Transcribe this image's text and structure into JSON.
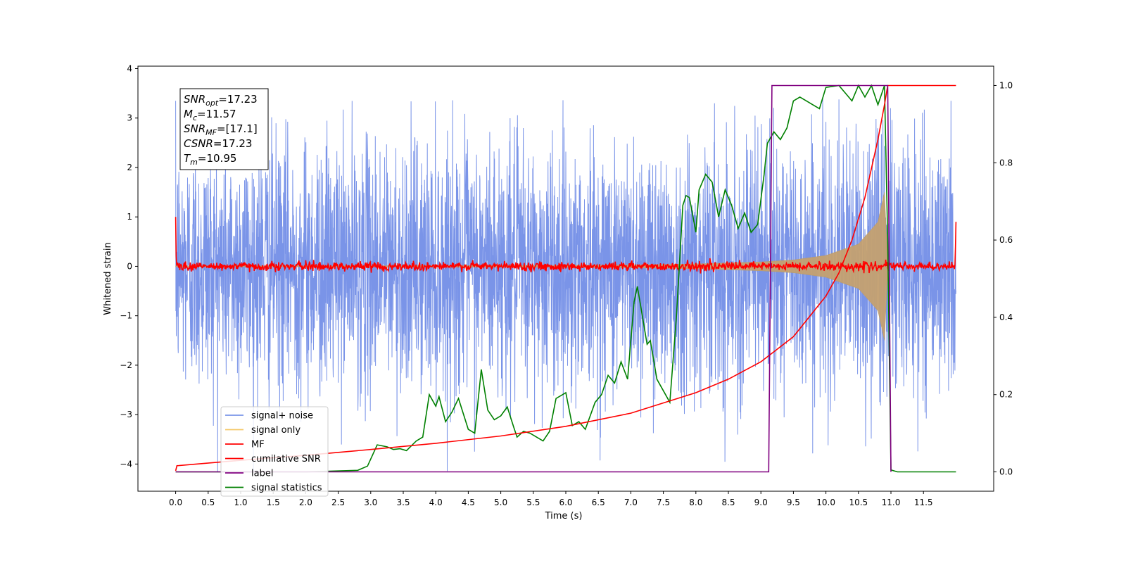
{
  "chart_data": {
    "type": "line",
    "xlabel": "Time (s)",
    "ylabel": "Whitened strain",
    "xlim": [
      -0.58,
      12.58
    ],
    "ylim": [
      -4.55,
      4.05
    ],
    "ylim_right": [
      -0.05,
      1.05
    ],
    "x_ticks": [
      "0.0",
      "0.5",
      "1.0",
      "1.5",
      "2.0",
      "2.5",
      "3.0",
      "3.5",
      "4.0",
      "4.5",
      "5.0",
      "5.5",
      "6.0",
      "6.5",
      "7.0",
      "7.5",
      "8.0",
      "8.5",
      "9.0",
      "9.5",
      "10.0",
      "10.5",
      "11.0",
      "11.5"
    ],
    "y_ticks": [
      "4",
      "3",
      "2",
      "1",
      "0",
      "−1",
      "−2",
      "−3",
      "−4"
    ],
    "y_ticks_right": [
      "1.0",
      "0.8",
      "0.6",
      "0.4",
      "0.2",
      "0.0"
    ],
    "grid": false,
    "legend_position": "lower-left",
    "annotation": {
      "lines": [
        {
          "name": "SNR",
          "sub": "opt",
          "value": "=17.23"
        },
        {
          "name": "M",
          "sub": "c",
          "value": "=11.57"
        },
        {
          "name": "SNR",
          "sub": "MF",
          "value": "=[17.1]"
        },
        {
          "name": "CSNR",
          "sub": "",
          "value": "=17.23"
        },
        {
          "name": "T",
          "sub": "m",
          "value": "=10.95"
        }
      ]
    },
    "series": [
      {
        "name": "signal+ noise",
        "color": "#7a94e8",
        "axis": "left",
        "description_range": [
          -4.15,
          3.35
        ],
        "x_range": [
          0.0,
          12.0
        ]
      },
      {
        "name": "signal only",
        "color": "#f5c868",
        "axis": "left",
        "envelope": {
          "t": [
            0.0,
            2.0,
            4.0,
            6.0,
            7.0,
            8.0,
            9.0,
            9.5,
            10.0,
            10.5,
            10.8,
            10.9,
            10.95
          ],
          "amp": [
            0.01,
            0.01,
            0.015,
            0.02,
            0.03,
            0.05,
            0.09,
            0.13,
            0.22,
            0.45,
            0.9,
            1.5,
            0.1
          ]
        }
      },
      {
        "name": "MF",
        "color": "#ff0000",
        "axis": "left",
        "baseline": 0.0,
        "x_range": [
          0.0,
          12.0
        ]
      },
      {
        "name": "cumilative SNR",
        "color": "#ff0000",
        "axis": "right",
        "x": [
          0.0,
          0.02,
          1.0,
          2.0,
          3.0,
          4.0,
          5.0,
          6.0,
          7.0,
          8.0,
          8.5,
          9.0,
          9.5,
          10.0,
          10.2,
          10.4,
          10.6,
          10.8,
          10.9,
          10.95,
          12.0
        ],
        "y": [
          0.003,
          0.016,
          0.03,
          0.043,
          0.058,
          0.074,
          0.093,
          0.118,
          0.152,
          0.205,
          0.24,
          0.285,
          0.35,
          0.455,
          0.515,
          0.6,
          0.71,
          0.86,
          0.95,
          1.0,
          1.0
        ]
      },
      {
        "name": "label",
        "color": "#800080",
        "axis": "right",
        "x": [
          0.0,
          9.12,
          9.17,
          10.95,
          11.0,
          11.0
        ],
        "y": [
          0.0,
          0.0,
          1.0,
          1.0,
          0.0,
          0.0
        ]
      },
      {
        "name": "signal statistics",
        "color": "#008000",
        "axis": "right",
        "x": [
          0.0,
          0.5,
          1.0,
          1.5,
          2.0,
          2.4,
          2.8,
          2.95,
          3.1,
          3.25,
          3.35,
          3.45,
          3.55,
          3.7,
          3.8,
          3.9,
          4.0,
          4.05,
          4.15,
          4.25,
          4.35,
          4.5,
          4.6,
          4.7,
          4.8,
          4.9,
          5.0,
          5.1,
          5.2,
          5.25,
          5.35,
          5.45,
          5.55,
          5.65,
          5.75,
          5.85,
          6.0,
          6.1,
          6.2,
          6.3,
          6.45,
          6.55,
          6.65,
          6.75,
          6.85,
          6.95,
          7.05,
          7.1,
          7.15,
          7.25,
          7.3,
          7.4,
          7.5,
          7.6,
          7.7,
          7.8,
          7.85,
          7.9,
          8.0,
          8.05,
          8.15,
          8.25,
          8.35,
          8.45,
          8.55,
          8.65,
          8.75,
          8.85,
          8.95,
          9.05,
          9.1,
          9.2,
          9.3,
          9.4,
          9.5,
          9.6,
          9.7,
          9.8,
          9.9,
          10.0,
          10.2,
          10.3,
          10.4,
          10.5,
          10.6,
          10.7,
          10.8,
          10.9,
          10.95,
          11.0,
          11.1,
          11.3,
          12.0
        ],
        "y": [
          0.0,
          0.0,
          0.0,
          0.0,
          0.0,
          0.002,
          0.004,
          0.015,
          0.07,
          0.065,
          0.058,
          0.06,
          0.055,
          0.08,
          0.09,
          0.2,
          0.17,
          0.195,
          0.13,
          0.155,
          0.19,
          0.11,
          0.1,
          0.265,
          0.16,
          0.135,
          0.145,
          0.168,
          0.115,
          0.09,
          0.105,
          0.1,
          0.09,
          0.08,
          0.105,
          0.19,
          0.205,
          0.12,
          0.13,
          0.11,
          0.18,
          0.2,
          0.25,
          0.23,
          0.285,
          0.24,
          0.44,
          0.48,
          0.43,
          0.33,
          0.34,
          0.24,
          0.21,
          0.18,
          0.4,
          0.69,
          0.715,
          0.71,
          0.62,
          0.73,
          0.77,
          0.75,
          0.66,
          0.73,
          0.69,
          0.63,
          0.67,
          0.62,
          0.64,
          0.77,
          0.85,
          0.88,
          0.86,
          0.89,
          0.96,
          0.97,
          0.96,
          0.95,
          0.94,
          0.995,
          1.0,
          0.98,
          0.96,
          1.0,
          0.97,
          1.0,
          0.95,
          1.0,
          0.6,
          0.005,
          0.0,
          0.0,
          0.0
        ]
      }
    ]
  }
}
